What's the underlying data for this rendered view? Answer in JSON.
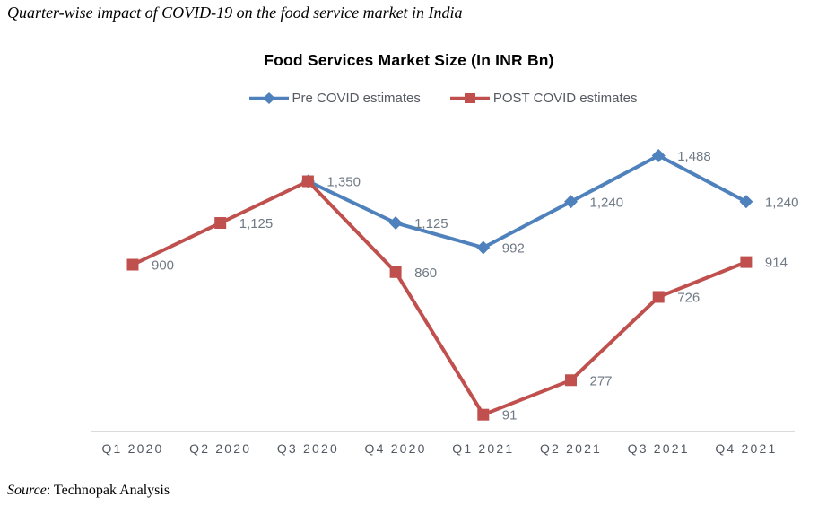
{
  "page": {
    "heading": "Quarter-wise impact of COVID-19 on the food service market in India",
    "source_label": "Source",
    "source_rest": ": Technopak Analysis"
  },
  "chart_data": {
    "type": "line",
    "title": "Food Services Market Size (In INR Bn)",
    "xlabel": "",
    "ylabel": "",
    "ylim": [
      0,
      1600
    ],
    "grid": false,
    "y_axis_visible": false,
    "legend_position": "top",
    "axis_line_color": "#cfcfcf",
    "data_label_color": "#707a85",
    "axis_label_color": "#515861",
    "categories": [
      "Q1 2020",
      "Q2 2020",
      "Q3 2020",
      "Q4 2020",
      "Q1 2021",
      "Q2 2021",
      "Q3 2021",
      "Q4 2021"
    ],
    "series": [
      {
        "name": "Pre COVID estimates",
        "color": "#4F81BD",
        "marker": "diamond",
        "start_category": "Q3 2020",
        "values": [
          1350,
          1125,
          992,
          1240,
          1488,
          1240
        ],
        "labels": [
          "",
          "1,125",
          "992",
          "1,240",
          "1,488",
          "1,240"
        ]
      },
      {
        "name": "POST COVID estimates",
        "color": "#C0504D",
        "marker": "square",
        "start_category": "Q1 2020",
        "values": [
          900,
          1125,
          1350,
          860,
          91,
          277,
          726,
          914
        ],
        "labels": [
          "900",
          "1,125",
          "1,350",
          "860",
          "91",
          "277",
          "726",
          "914"
        ]
      }
    ]
  }
}
